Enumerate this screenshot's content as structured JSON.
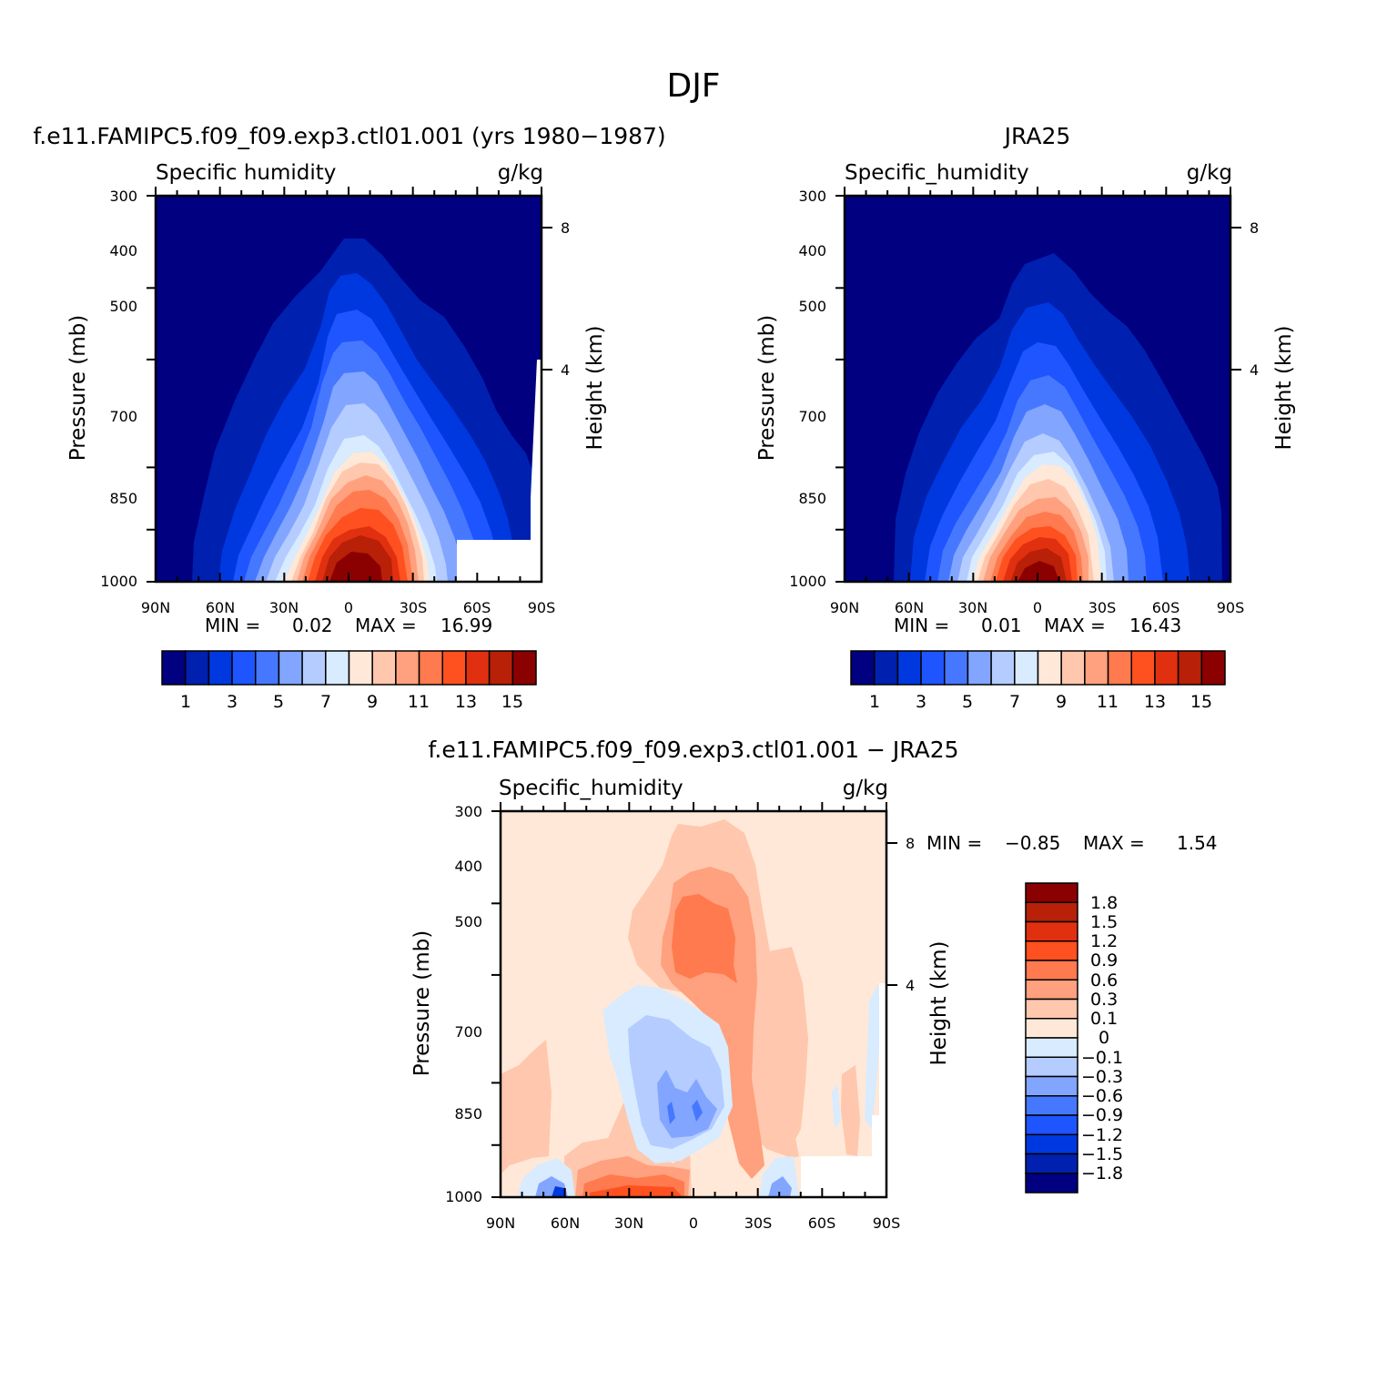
{
  "figure": {
    "title": "DJF"
  },
  "palettes": {
    "abs": [
      "#000080",
      "#0020b0",
      "#0038e0",
      "#1e55ff",
      "#4678ff",
      "#82a5ff",
      "#b4ccff",
      "#d8ebff",
      "#ffe8d8",
      "#ffc7ad",
      "#ffa07e",
      "#ff7a4e",
      "#ff5020",
      "#e03010",
      "#b82008",
      "#8b0000"
    ],
    "diff": [
      "#8b0000",
      "#b82008",
      "#e03010",
      "#ff5020",
      "#ff7a4e",
      "#ffa07e",
      "#ffc7ad",
      "#ffe8d8",
      "#d8ebff",
      "#b4ccff",
      "#82a5ff",
      "#4678ff",
      "#1e55ff",
      "#0038e0",
      "#0020b0",
      "#000080"
    ]
  },
  "chart_data": [
    {
      "id": "model",
      "type": "contour",
      "title": "f.e11.FAMIPC5.f09_f09.exp3.ctl01.001 (yrs 1980−1987)",
      "variable": "Specific humidity",
      "units": "g/kg",
      "ylabel": "Pressure (mb)",
      "ylabel_right": "Height (km)",
      "x_ticks": [
        "90N",
        "60N",
        "30N",
        "0",
        "30S",
        "60S",
        "90S"
      ],
      "y_ticks": [
        "300",
        "400",
        "500",
        "700",
        "850",
        "1000"
      ],
      "y_ticks_right": [
        "8",
        "4"
      ],
      "xlim": [
        90,
        -90
      ],
      "ylim": [
        1000,
        300
      ],
      "stats": {
        "min_label": "MIN =",
        "min": "0.02",
        "max_label": "MAX =",
        "max": "16.99"
      },
      "colorbar": {
        "orientation": "horizontal",
        "labels": [
          "1",
          "3",
          "5",
          "7",
          "9",
          "11",
          "13",
          "15"
        ]
      },
      "peak_lat": 0,
      "peak_value": 16.99,
      "missing_regions": [
        "60S-90S below 900 mb",
        "80S-90S below 600 mb"
      ]
    },
    {
      "id": "obs",
      "type": "contour",
      "title": "JRA25",
      "variable": "Specific_humidity",
      "units": "g/kg",
      "ylabel": "Pressure (mb)",
      "ylabel_right": "Height (km)",
      "x_ticks": [
        "90N",
        "60N",
        "30N",
        "0",
        "30S",
        "60S",
        "90S"
      ],
      "y_ticks": [
        "300",
        "400",
        "500",
        "700",
        "850",
        "1000"
      ],
      "y_ticks_right": [
        "8",
        "4"
      ],
      "xlim": [
        90,
        -90
      ],
      "ylim": [
        1000,
        300
      ],
      "stats": {
        "min_label": "MIN =",
        "min": "0.01",
        "max_label": "MAX =",
        "max": "16.43"
      },
      "colorbar": {
        "orientation": "horizontal",
        "labels": [
          "1",
          "3",
          "5",
          "7",
          "9",
          "11",
          "13",
          "15"
        ]
      },
      "peak_lat": 0,
      "peak_value": 16.43
    },
    {
      "id": "diff",
      "type": "contour",
      "title": "f.e11.FAMIPC5.f09_f09.exp3.ctl01.001 − JRA25",
      "variable": "Specific_humidity",
      "units": "g/kg",
      "ylabel": "Pressure (mb)",
      "ylabel_right": "Height (km)",
      "x_ticks": [
        "90N",
        "60N",
        "30N",
        "0",
        "30S",
        "60S",
        "90S"
      ],
      "y_ticks": [
        "300",
        "400",
        "500",
        "700",
        "850",
        "1000"
      ],
      "y_ticks_right": [
        "8",
        "4"
      ],
      "xlim": [
        90,
        -90
      ],
      "ylim": [
        1000,
        300
      ],
      "stats": {
        "min_label": "MIN =",
        "min": "−0.85",
        "max_label": "MAX =",
        "max": "1.54"
      },
      "colorbar": {
        "orientation": "vertical",
        "labels": [
          "1.8",
          "1.5",
          "1.2",
          "0.9",
          "0.6",
          "0.3",
          "0.1",
          "0",
          "−0.1",
          "−0.3",
          "−0.6",
          "−0.9",
          "−1.2",
          "−1.5",
          "−1.8"
        ]
      }
    }
  ]
}
